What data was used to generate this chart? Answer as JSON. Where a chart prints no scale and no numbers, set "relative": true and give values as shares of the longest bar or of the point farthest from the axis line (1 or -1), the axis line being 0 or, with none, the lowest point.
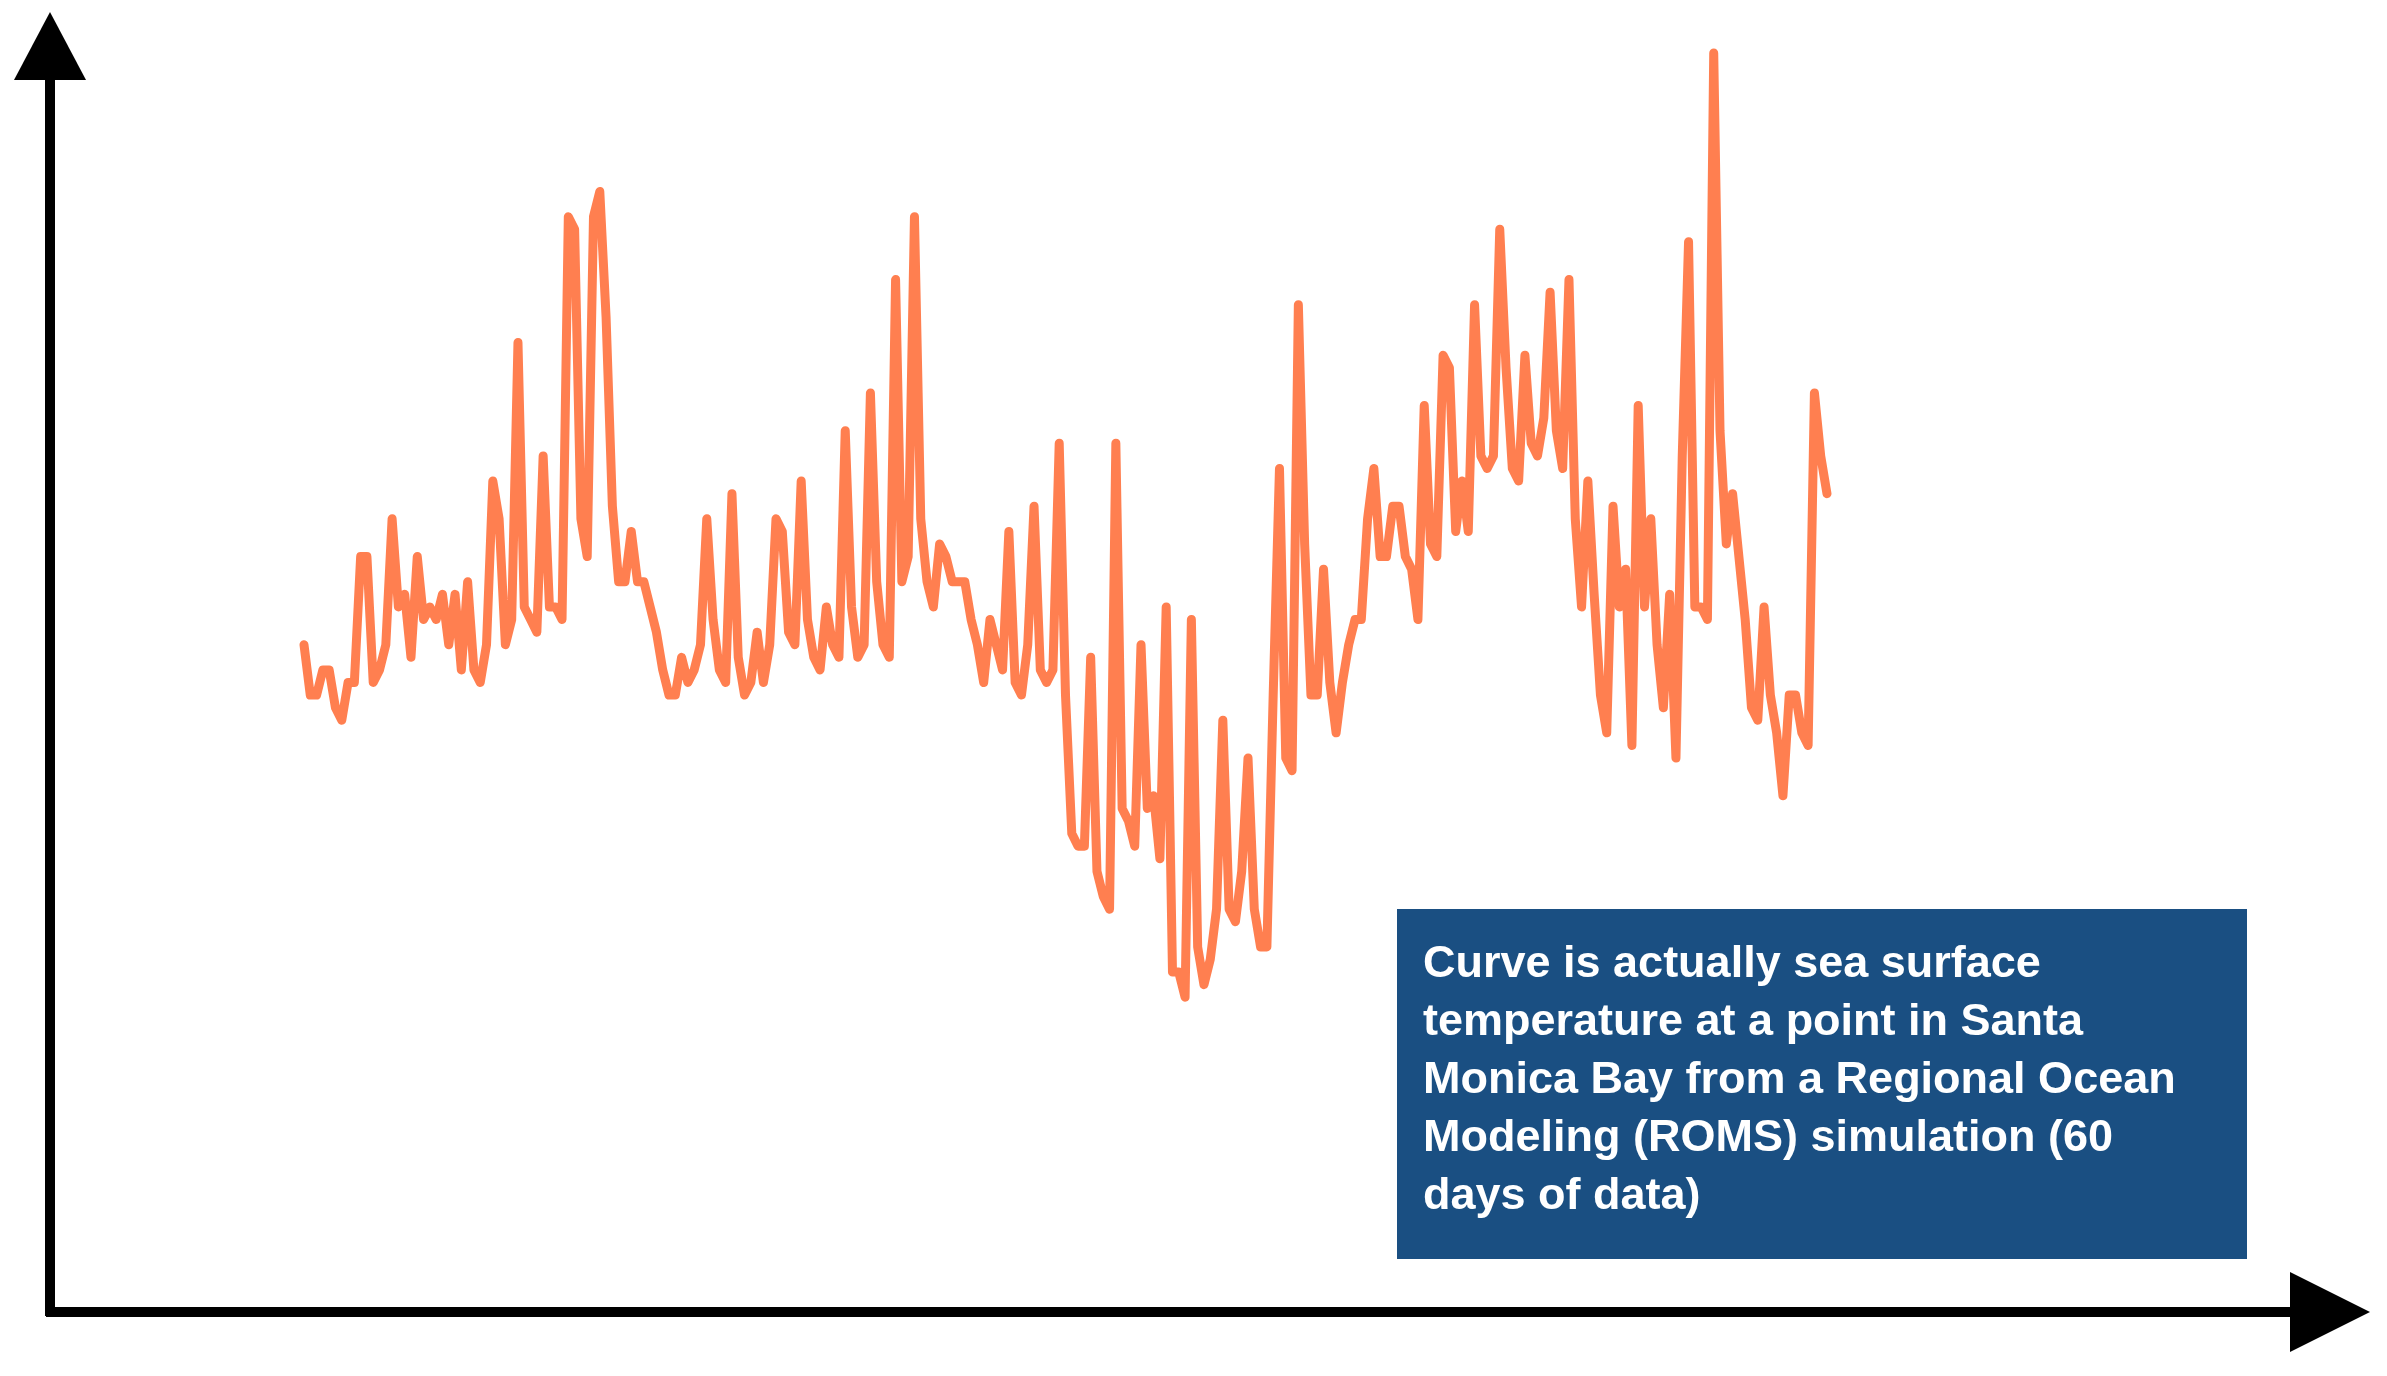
{
  "chart_data": {
    "type": "line",
    "relative": true,
    "color": "#ff7f50",
    "annotations": [
      "Curve is actually sea surface temperature at a point in Santa Monica Bay from a Regional Ocean Modeling (ROMS) simulation (60 days of data)"
    ],
    "categories": [
      null,
      null,
      null,
      null,
      null,
      null,
      null,
      null,
      null,
      null,
      null,
      null,
      null,
      null,
      null,
      null,
      null,
      null,
      null,
      null,
      null,
      null,
      null,
      null,
      null,
      null,
      null,
      null,
      null,
      null,
      null,
      null,
      null,
      null,
      null,
      null,
      null,
      null,
      null,
      null,
      null,
      null,
      null,
      null,
      null,
      null,
      null,
      null,
      null,
      null,
      null,
      null,
      null,
      null,
      null,
      null,
      null,
      null,
      null,
      null,
      null,
      null,
      null,
      null,
      null,
      null,
      null,
      null,
      null,
      null,
      null,
      null,
      null,
      null,
      null,
      null,
      null,
      null,
      null,
      null,
      null,
      null,
      null,
      null,
      null,
      null,
      null,
      null,
      null,
      null,
      null,
      null,
      null,
      null,
      null,
      null,
      null,
      null,
      null,
      null,
      null,
      null,
      null,
      null,
      null,
      null,
      null,
      null,
      null,
      null,
      null,
      null,
      null,
      null,
      null,
      null,
      null,
      null,
      null,
      null,
      null,
      null,
      null,
      null,
      null,
      null,
      null,
      null,
      null,
      null,
      null,
      null,
      null,
      null,
      null,
      null,
      null,
      null,
      null,
      null,
      null,
      null,
      null,
      null,
      null,
      null,
      null,
      null,
      null,
      null,
      null,
      null,
      null,
      null,
      null,
      null,
      null,
      null,
      null,
      null,
      null,
      null,
      null,
      null,
      null,
      null,
      null,
      null,
      null,
      null,
      null,
      null,
      null,
      null,
      null,
      null,
      null,
      null,
      null,
      null,
      null,
      null,
      null,
      null,
      null,
      null,
      null,
      null,
      null,
      null,
      null,
      null,
      null,
      null,
      null,
      null,
      null,
      null,
      null,
      null,
      null,
      null,
      null,
      null,
      null,
      null,
      null,
      null,
      null,
      null,
      null,
      null,
      null,
      null,
      null,
      null,
      null,
      null,
      null,
      null,
      null,
      null,
      null,
      null,
      null,
      null,
      null,
      null,
      null,
      null,
      null,
      null,
      null,
      null,
      null,
      null,
      null,
      null,
      null,
      null,
      null,
      null,
      null
    ],
    "values": [
      0.53,
      0.49,
      0.49,
      0.51,
      0.51,
      0.48,
      0.47,
      0.5,
      0.5,
      0.6,
      0.6,
      0.5,
      0.51,
      0.53,
      0.63,
      0.56,
      0.57,
      0.52,
      0.6,
      0.55,
      0.56,
      0.55,
      0.57,
      0.53,
      0.57,
      0.51,
      0.58,
      0.51,
      0.5,
      0.53,
      0.66,
      0.63,
      0.53,
      0.55,
      0.77,
      0.56,
      0.55,
      0.54,
      0.68,
      0.56,
      0.56,
      0.55,
      0.87,
      0.86,
      0.63,
      0.6,
      0.87,
      0.89,
      0.79,
      0.64,
      0.58,
      0.58,
      0.62,
      0.58,
      0.58,
      0.56,
      0.54,
      0.51,
      0.49,
      0.49,
      0.52,
      0.5,
      0.51,
      0.53,
      0.63,
      0.55,
      0.51,
      0.5,
      0.65,
      0.52,
      0.49,
      0.5,
      0.54,
      0.5,
      0.53,
      0.63,
      0.62,
      0.54,
      0.53,
      0.66,
      0.55,
      0.52,
      0.51,
      0.56,
      0.53,
      0.52,
      0.7,
      0.56,
      0.52,
      0.53,
      0.73,
      0.58,
      0.53,
      0.52,
      0.82,
      0.58,
      0.6,
      0.87,
      0.63,
      0.58,
      0.56,
      0.61,
      0.6,
      0.58,
      0.58,
      0.58,
      0.55,
      0.53,
      0.5,
      0.55,
      0.53,
      0.51,
      0.62,
      0.5,
      0.49,
      0.53,
      0.64,
      0.51,
      0.5,
      0.51,
      0.69,
      0.49,
      0.38,
      0.37,
      0.37,
      0.52,
      0.35,
      0.33,
      0.32,
      0.69,
      0.4,
      0.39,
      0.37,
      0.53,
      0.4,
      0.41,
      0.36,
      0.56,
      0.27,
      0.27,
      0.25,
      0.55,
      0.29,
      0.26,
      0.28,
      0.32,
      0.47,
      0.32,
      0.31,
      0.35,
      0.44,
      0.32,
      0.29,
      0.29,
      0.49,
      0.67,
      0.44,
      0.43,
      0.8,
      0.61,
      0.49,
      0.49,
      0.59,
      0.5,
      0.46,
      0.5,
      0.53,
      0.55,
      0.55,
      0.63,
      0.67,
      0.6,
      0.6,
      0.64,
      0.64,
      0.6,
      0.59,
      0.55,
      0.72,
      0.61,
      0.6,
      0.76,
      0.75,
      0.62,
      0.66,
      0.62,
      0.8,
      0.68,
      0.67,
      0.68,
      0.86,
      0.75,
      0.67,
      0.66,
      0.76,
      0.69,
      0.68,
      0.71,
      0.81,
      0.7,
      0.67,
      0.82,
      0.63,
      0.56,
      0.66,
      0.57,
      0.49,
      0.46,
      0.64,
      0.56,
      0.59,
      0.45,
      0.72,
      0.56,
      0.63,
      0.53,
      0.48,
      0.57,
      0.44,
      0.68,
      0.85,
      0.56,
      0.56,
      0.55,
      1,
      0.7,
      0.61,
      0.65,
      0.6,
      0.55,
      0.48,
      0.47,
      0.56,
      0.49,
      0.46,
      0.41,
      0.49,
      0.49,
      0.46,
      0.45,
      0.73,
      0.68,
      0.65
    ]
  }
}
